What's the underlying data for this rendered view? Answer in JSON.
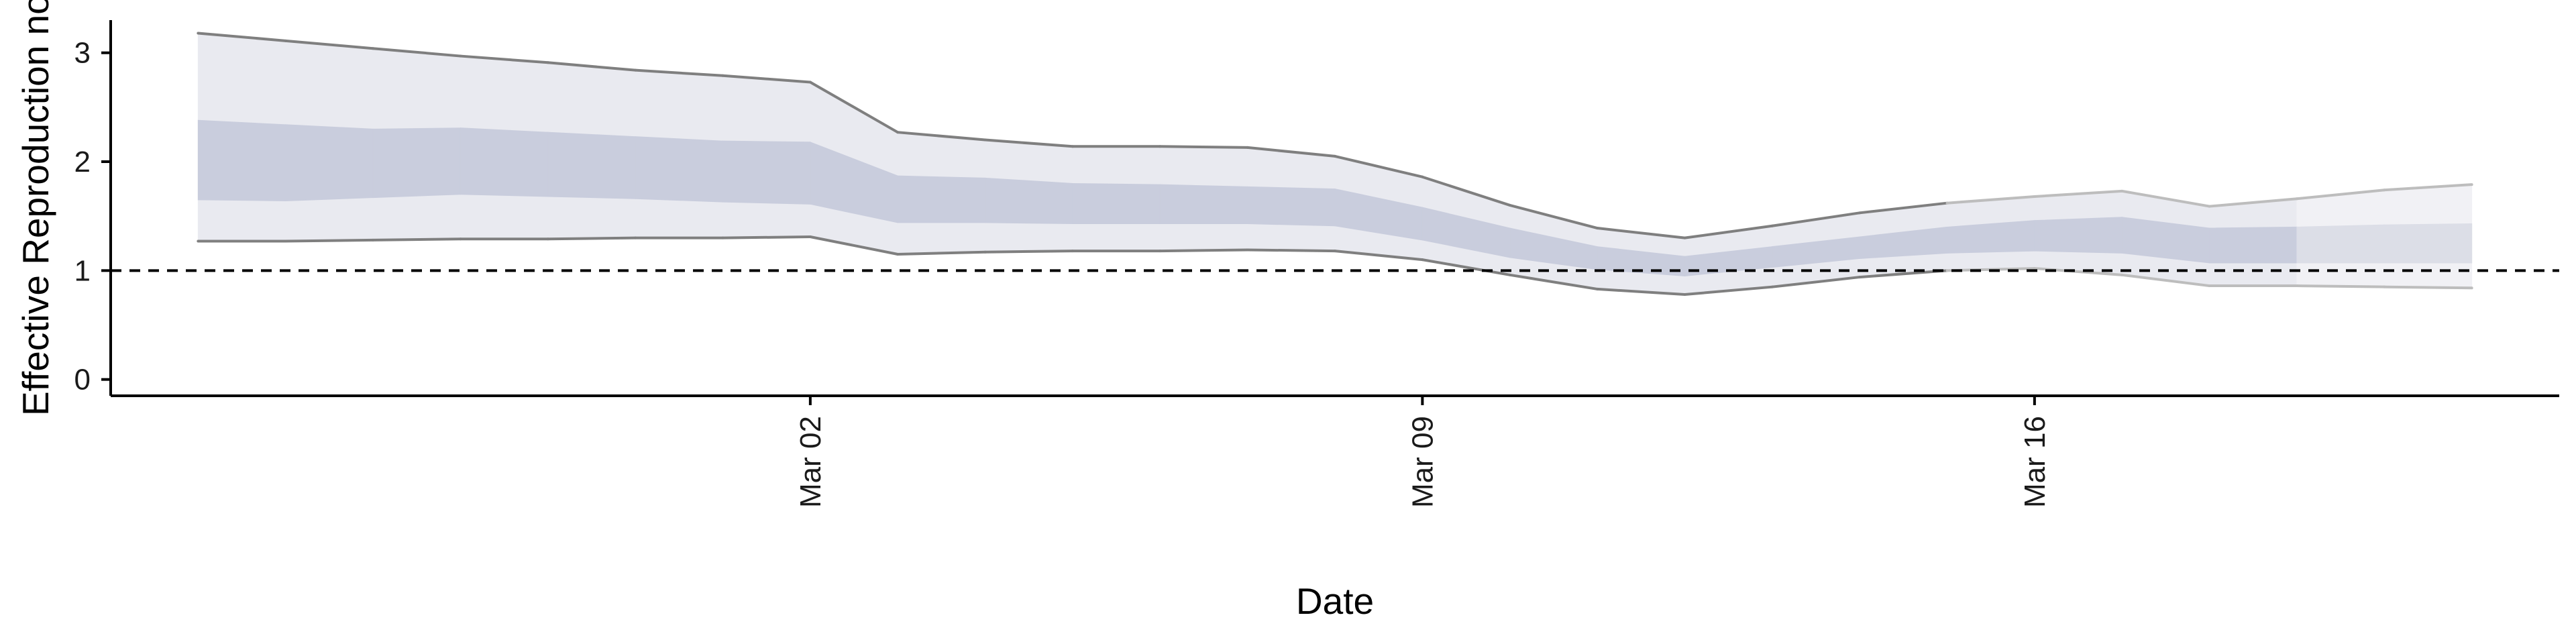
{
  "chart_data": {
    "type": "area",
    "xlabel": "Date",
    "ylabel": "Effective Reproduction no.",
    "x_range": [
      "2020-02-23",
      "2020-03-22"
    ],
    "ylim": [
      -0.15,
      3.3
    ],
    "yticks": [
      0,
      1,
      2,
      3
    ],
    "xticks": [
      {
        "date": "2020-03-02",
        "label": "Mar 02"
      },
      {
        "date": "2020-03-09",
        "label": "Mar 09"
      },
      {
        "date": "2020-03-16",
        "label": "Mar 16"
      }
    ],
    "reference_line": {
      "y": 1,
      "style": "dashed"
    },
    "grid": false,
    "legend": "none",
    "x": [
      "2020-02-24",
      "2020-02-25",
      "2020-02-26",
      "2020-02-27",
      "2020-02-28",
      "2020-02-29",
      "2020-03-01",
      "2020-03-02",
      "2020-03-03",
      "2020-03-04",
      "2020-03-05",
      "2020-03-06",
      "2020-03-07",
      "2020-03-08",
      "2020-03-09",
      "2020-03-10",
      "2020-03-11",
      "2020-03-12",
      "2020-03-13",
      "2020-03-14",
      "2020-03-15",
      "2020-03-16",
      "2020-03-17",
      "2020-03-18",
      "2020-03-19",
      "2020-03-20",
      "2020-03-21"
    ],
    "series": [
      {
        "values": [
          1.27,
          1.27,
          1.28,
          1.29,
          1.29,
          1.3,
          1.3,
          1.31,
          1.15,
          1.17,
          1.18,
          1.18,
          1.19,
          1.18,
          1.1,
          0.96,
          0.83,
          0.78,
          0.85,
          0.94,
          1.0,
          1.02,
          0.96,
          0.86,
          0.86,
          0.85,
          0.84
        ]
      },
      {
        "values": [
          1.65,
          1.64,
          1.67,
          1.7,
          1.68,
          1.66,
          1.63,
          1.61,
          1.44,
          1.44,
          1.43,
          1.43,
          1.43,
          1.41,
          1.28,
          1.12,
          1.01,
          0.95,
          1.03,
          1.11,
          1.16,
          1.18,
          1.16,
          1.07,
          1.07,
          1.07,
          1.07
        ]
      },
      {
        "values": [
          2.38,
          2.34,
          2.3,
          2.31,
          2.27,
          2.23,
          2.19,
          2.18,
          1.87,
          1.85,
          1.8,
          1.79,
          1.77,
          1.75,
          1.58,
          1.39,
          1.22,
          1.13,
          1.22,
          1.31,
          1.4,
          1.46,
          1.49,
          1.39,
          1.4,
          1.42,
          1.43
        ]
      },
      {
        "values": [
          3.18,
          3.11,
          3.04,
          2.97,
          2.91,
          2.84,
          2.79,
          2.73,
          2.27,
          2.2,
          2.14,
          2.14,
          2.13,
          2.05,
          1.86,
          1.6,
          1.39,
          1.3,
          1.41,
          1.53,
          1.62,
          1.68,
          1.73,
          1.59,
          1.66,
          1.74,
          1.79
        ]
      }
    ],
    "estimate_types": [
      "estimate",
      "estimate",
      "estimate",
      "estimate",
      "estimate",
      "estimate",
      "estimate",
      "estimate",
      "estimate",
      "estimate",
      "estimate",
      "estimate",
      "estimate",
      "estimate",
      "estimate",
      "estimate",
      "estimate",
      "estimate",
      "estimate",
      "estimate",
      "estimate",
      "estimate",
      "estimate",
      "estimate",
      "estimate",
      "forecast",
      "forecast"
    ],
    "colors": {
      "outer_band": "#e9eaf0",
      "inner_band": "#c9cddd",
      "outer_band_forecast": "#f1f1f5",
      "inner_band_forecast": "#dcdee7",
      "bound_line": "#7f7f7f",
      "bound_line_forecast": "#bdbdbd",
      "axis": "#000000",
      "reference_line": "#000000"
    }
  }
}
